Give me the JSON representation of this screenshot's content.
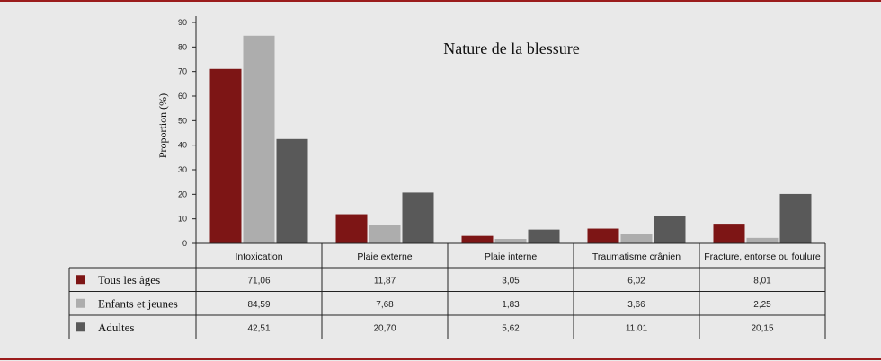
{
  "chart_data": {
    "type": "bar",
    "title": "Nature de la blessure",
    "ylabel": "Proportion (%)",
    "ylim": [
      0,
      90
    ],
    "yticks": [
      0,
      10,
      20,
      30,
      40,
      50,
      60,
      70,
      80,
      90
    ],
    "categories": [
      "Intoxication",
      "Plaie externe",
      "Plaie interne",
      "Traumatisme crânien",
      "Fracture, entorse ou foulure"
    ],
    "series": [
      {
        "name": "Tous les âges",
        "color": "#7d1515",
        "values": [
          71.06,
          11.87,
          3.05,
          6.02,
          8.01
        ],
        "labels": [
          "71,06",
          "11,87",
          "3,05",
          "6,02",
          "8,01"
        ]
      },
      {
        "name": "Enfants et jeunes",
        "color": "#adadad",
        "values": [
          84.59,
          7.68,
          1.83,
          3.66,
          2.25
        ],
        "labels": [
          "84,59",
          "7,68",
          "1,83",
          "3,66",
          "2,25"
        ]
      },
      {
        "name": "Adultes",
        "color": "#595959",
        "values": [
          42.51,
          20.7,
          5.62,
          11.01,
          20.15
        ],
        "labels": [
          "42,51",
          "20,70",
          "5,62",
          "11,01",
          "20,15"
        ]
      }
    ],
    "grid": false,
    "legend": "data-table"
  }
}
